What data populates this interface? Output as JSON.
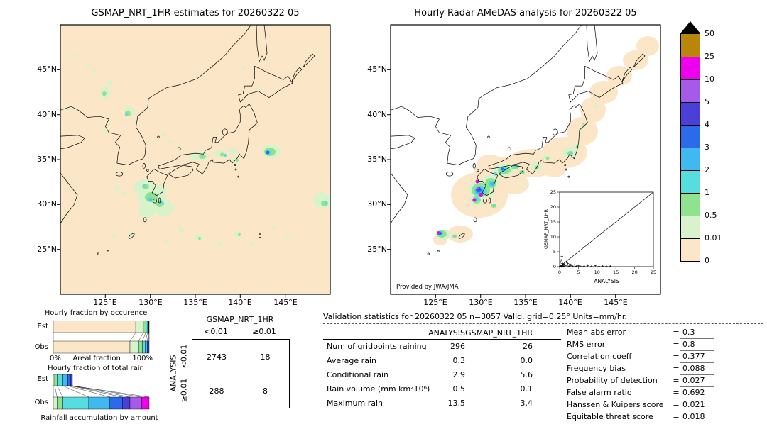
{
  "left_map": {
    "title": "GSMAP_NRT_1HR estimates for 20260322 05",
    "lat_ticks": [
      "45°N",
      "40°N",
      "35°N",
      "30°N",
      "25°N"
    ],
    "lon_ticks": [
      "125°E",
      "130°E",
      "135°E",
      "140°E",
      "145°E"
    ],
    "background": "#fce6c8",
    "blobs": [
      [
        20,
        42,
        2.5,
        2,
        "pg"
      ],
      [
        38,
        58,
        3,
        2.5,
        "pg"
      ],
      [
        48,
        64,
        2.5,
        2,
        "pg"
      ],
      [
        63,
        95,
        7,
        9,
        "pg"
      ],
      [
        70,
        82,
        4,
        4,
        "pg"
      ],
      [
        62,
        97,
        3,
        3,
        "g"
      ],
      [
        12,
        118,
        3,
        3,
        "pg"
      ],
      [
        97,
        122,
        8,
        7,
        "pg"
      ],
      [
        95,
        125,
        4,
        4,
        "g"
      ],
      [
        93,
        127,
        2,
        2,
        "c"
      ],
      [
        65,
        150,
        3,
        3,
        "pg"
      ],
      [
        145,
        155,
        3,
        3,
        "pg"
      ],
      [
        155,
        165,
        2.5,
        2.5,
        "pg"
      ],
      [
        258,
        62,
        2.5,
        2.5,
        "pg"
      ],
      [
        278,
        88,
        2,
        2,
        "pg"
      ],
      [
        195,
        185,
        14,
        6,
        "pg"
      ],
      [
        200,
        186,
        5,
        3,
        "g"
      ],
      [
        225,
        182,
        10,
        5,
        "pg"
      ],
      [
        228,
        183,
        3,
        2.5,
        "g"
      ],
      [
        232,
        184,
        2,
        2,
        "c"
      ],
      [
        243,
        178,
        6,
        4,
        "pg"
      ],
      [
        247,
        190,
        5,
        4,
        "pg"
      ],
      [
        249,
        191,
        2,
        2,
        "g"
      ],
      [
        297,
        178,
        13,
        10,
        "pg"
      ],
      [
        295,
        179,
        8,
        6,
        "g"
      ],
      [
        293,
        180,
        4.5,
        4,
        "c"
      ],
      [
        292,
        180,
        2.5,
        2.5,
        "b"
      ],
      [
        118,
        230,
        16,
        12,
        "pg"
      ],
      [
        130,
        245,
        20,
        16,
        "pg"
      ],
      [
        145,
        258,
        14,
        12,
        "pg"
      ],
      [
        122,
        262,
        12,
        10,
        "pg"
      ],
      [
        138,
        232,
        12,
        8,
        "pg"
      ],
      [
        80,
        230,
        4,
        4,
        "pg"
      ],
      [
        90,
        238,
        3,
        3,
        "pg"
      ],
      [
        128,
        243,
        9,
        7,
        "g"
      ],
      [
        140,
        252,
        6,
        5,
        "g"
      ],
      [
        120,
        228,
        5,
        4,
        "g"
      ],
      [
        126,
        246,
        3.5,
        3,
        "c"
      ],
      [
        142,
        250,
        2.5,
        2.5,
        "c"
      ],
      [
        118,
        226,
        2,
        2,
        "c"
      ],
      [
        127,
        247,
        1.5,
        1.5,
        "lb"
      ],
      [
        75,
        298,
        4,
        3,
        "pg"
      ],
      [
        100,
        296,
        5,
        3,
        "pg"
      ],
      [
        150,
        305,
        3,
        3,
        "pg"
      ],
      [
        170,
        290,
        4,
        3,
        "pg"
      ],
      [
        195,
        300,
        6,
        4,
        "pg"
      ],
      [
        196,
        301,
        2,
        2,
        "g"
      ],
      [
        225,
        309,
        4,
        3,
        "pg"
      ],
      [
        250,
        295,
        5,
        4,
        "pg"
      ],
      [
        252,
        296,
        2,
        2,
        "g"
      ],
      [
        270,
        310,
        3,
        2.5,
        "pg"
      ],
      [
        300,
        285,
        4,
        3,
        "pg"
      ],
      [
        320,
        300,
        3,
        2.5,
        "pg"
      ],
      [
        368,
        248,
        12,
        12,
        "pg"
      ],
      [
        372,
        252,
        5,
        4,
        "g"
      ],
      [
        374,
        250,
        2,
        2,
        "c"
      ]
    ]
  },
  "right_map": {
    "title": "Hourly Radar-AMeDAS analysis for 20260322 05",
    "lat_ticks": [
      "45°N",
      "40°N",
      "35°N",
      "30°N",
      "25°N"
    ],
    "lon_ticks": [
      "125°E",
      "130°E",
      "135°E",
      "140°E",
      "145°E"
    ],
    "credit": "Provided by JWA/JMA",
    "background": "#ffffff",
    "blobs": [
      [
        125,
        240,
        40,
        32,
        "t"
      ],
      [
        155,
        210,
        38,
        24,
        "t"
      ],
      [
        200,
        195,
        36,
        20,
        "t"
      ],
      [
        245,
        180,
        32,
        22,
        "t"
      ],
      [
        270,
        150,
        22,
        20,
        "t"
      ],
      [
        285,
        120,
        18,
        18,
        "t"
      ],
      [
        300,
        95,
        20,
        16,
        "t"
      ],
      [
        322,
        72,
        18,
        14,
        "t"
      ],
      [
        345,
        50,
        18,
        14,
        "t"
      ],
      [
        362,
        30,
        16,
        14,
        "t"
      ],
      [
        140,
        195,
        18,
        12,
        "t"
      ],
      [
        175,
        225,
        20,
        14,
        "t"
      ],
      [
        230,
        205,
        16,
        10,
        "t"
      ],
      [
        98,
        295,
        18,
        12,
        "t"
      ],
      [
        70,
        303,
        10,
        8,
        "t"
      ],
      [
        128,
        232,
        18,
        14,
        "pg"
      ],
      [
        140,
        222,
        12,
        10,
        "pg"
      ],
      [
        122,
        248,
        10,
        8,
        "pg"
      ],
      [
        127,
        233,
        13,
        10,
        "g"
      ],
      [
        141,
        223,
        8,
        7,
        "g"
      ],
      [
        121,
        247,
        6,
        5,
        "g"
      ],
      [
        126,
        234,
        9,
        7,
        "c"
      ],
      [
        142,
        224,
        5,
        4,
        "c"
      ],
      [
        120,
        246,
        4,
        3.5,
        "c"
      ],
      [
        125,
        234,
        6,
        5,
        "lb"
      ],
      [
        143,
        224,
        3,
        3,
        "lb"
      ],
      [
        124,
        233,
        4,
        3.5,
        "b"
      ],
      [
        124,
        231,
        2.5,
        2.5,
        "i"
      ],
      [
        123,
        230,
        2,
        2,
        "p"
      ],
      [
        122,
        221,
        2.5,
        2.5,
        "m"
      ],
      [
        127,
        240,
        3,
        3,
        "m"
      ],
      [
        118,
        247,
        2.5,
        2.5,
        "m"
      ],
      [
        160,
        205,
        14,
        9,
        "pg"
      ],
      [
        160,
        205,
        9,
        6,
        "g"
      ],
      [
        159,
        204,
        5,
        4,
        "c"
      ],
      [
        158,
        204,
        3,
        2.5,
        "lb"
      ],
      [
        157,
        203,
        2,
        2,
        "b"
      ],
      [
        175,
        200,
        6,
        4,
        "g"
      ],
      [
        176,
        200,
        3,
        2.5,
        "c"
      ],
      [
        185,
        208,
        4,
        3,
        "g"
      ],
      [
        186,
        208,
        2,
        1.5,
        "c"
      ],
      [
        147,
        210,
        3,
        2.5,
        "c"
      ],
      [
        145,
        255,
        4,
        3,
        "g"
      ],
      [
        146,
        255,
        2,
        1.5,
        "c"
      ],
      [
        205,
        200,
        8,
        6,
        "pg"
      ],
      [
        206,
        201,
        3,
        2.5,
        "g"
      ],
      [
        220,
        188,
        6,
        4,
        "pg"
      ],
      [
        221,
        188,
        2.5,
        2,
        "g"
      ],
      [
        252,
        180,
        9,
        7,
        "pg"
      ],
      [
        253,
        181,
        4,
        3,
        "g"
      ],
      [
        254,
        180,
        2,
        2,
        "c"
      ],
      [
        262,
        172,
        5,
        4,
        "pg"
      ],
      [
        263,
        172,
        2,
        1.5,
        "g"
      ],
      [
        268,
        150,
        4,
        3,
        "pg"
      ],
      [
        272,
        140,
        3,
        2.5,
        "pg"
      ],
      [
        272,
        140,
        1.5,
        1.5,
        "g"
      ],
      [
        290,
        115,
        3,
        2.5,
        "pg"
      ],
      [
        74,
        296,
        11,
        7,
        "pg"
      ],
      [
        72,
        295,
        7,
        5,
        "g"
      ],
      [
        70,
        294,
        4.5,
        3.5,
        "c"
      ],
      [
        69,
        294,
        3,
        2.5,
        "b"
      ],
      [
        68,
        293,
        2.5,
        2,
        "p"
      ],
      [
        67,
        293,
        2,
        1.8,
        "m"
      ],
      [
        90,
        298,
        3,
        2.5,
        "g"
      ],
      [
        91,
        298,
        1.5,
        1.5,
        "c"
      ]
    ]
  },
  "palette": {
    "t": "#fce6c8",
    "pg": "#d8f2cc",
    "g": "#8fe38f",
    "c": "#55dde0",
    "lb": "#3fb9f0",
    "b": "#2b6ae8",
    "i": "#4b3fd8",
    "p": "#a55ae8",
    "m": "#ee00ee",
    "br": "#b8860b"
  },
  "colorbar": {
    "labels": [
      "50",
      "25",
      "10",
      "5",
      "4",
      "3",
      "2",
      "1",
      "0.5",
      "0.01",
      "0"
    ],
    "colors": [
      "#b8860b",
      "#ee00ee",
      "#a55ae8",
      "#4b3fd8",
      "#2b6ae8",
      "#3fb9f0",
      "#55dde0",
      "#8fe38f",
      "#d8f2cc",
      "#fce6c8"
    ],
    "overflow_color": "#000000",
    "units": "mm/hr"
  },
  "chart_data": [
    {
      "type": "bar",
      "name": "hourly-fraction-by-occurrence",
      "title": "Hourly fraction by occurence",
      "xlabel": "Areal fraction",
      "x_ticks": [
        "0%",
        "100%"
      ],
      "level_thresholds": [
        "0",
        "0.01",
        "0.5",
        "1",
        "2",
        "3",
        "4"
      ],
      "levels": [
        "t",
        "pg",
        "g",
        "c",
        "lb",
        "b",
        "i"
      ],
      "series": [
        {
          "name": "Est",
          "fractions": [
            0.86,
            0.08,
            0.025,
            0.02,
            0.01,
            0.004,
            0.001
          ]
        },
        {
          "name": "Obs",
          "fractions": [
            0.8,
            0.09,
            0.04,
            0.03,
            0.02,
            0.012,
            0.008
          ]
        }
      ]
    },
    {
      "type": "bar",
      "name": "hourly-fraction-of-total-rain",
      "title": "Hourly fraction of total rain",
      "xlabel": "Rainfall accumulation by amount",
      "level_thresholds": [
        "0.01",
        "0.5",
        "1",
        "2",
        "3",
        "4",
        "5",
        "10"
      ],
      "levels": [
        "pg",
        "g",
        "c",
        "lb",
        "b",
        "i",
        "p",
        "m"
      ],
      "series": [
        {
          "name": "Est",
          "fractions": [
            0.015,
            0.025,
            0.06,
            0.05,
            0.03,
            0.015,
            0.005,
            0
          ]
        },
        {
          "name": "Obs",
          "fractions": [
            0.04,
            0.06,
            0.27,
            0.22,
            0.13,
            0.08,
            0.12,
            0.08
          ]
        }
      ]
    },
    {
      "type": "table",
      "name": "contingency-table",
      "title": "GSMAP_NRT_1HR",
      "row_axis": "ANALYSIS",
      "col_labels": [
        "<0.01",
        "≥0.01"
      ],
      "row_labels": [
        "<0.01",
        "≥0.01"
      ],
      "values": [
        [
          "2743",
          "18"
        ],
        [
          "288",
          "8"
        ]
      ]
    },
    {
      "type": "table",
      "name": "validation-statistics",
      "title": "Validation statistics for 20260322 05  n=3057 Valid. grid=0.25°  Units=mm/hr.",
      "col_headers": [
        "ANALYSIS",
        "GSMAP_NRT_1HR"
      ],
      "rows": [
        {
          "label": "Num of gridpoints raining",
          "values": [
            "296",
            "26"
          ]
        },
        {
          "label": "Average rain",
          "values": [
            "0.3",
            "0.0"
          ]
        },
        {
          "label": "Conditional rain",
          "values": [
            "2.9",
            "5.6"
          ]
        },
        {
          "label": "Rain volume (mm km²10⁶)",
          "values": [
            "0.5",
            "0.1"
          ]
        },
        {
          "label": "Maximum rain",
          "values": [
            "13.5",
            "3.4"
          ]
        }
      ],
      "scores": [
        {
          "label": "Mean abs error",
          "value": "0.3"
        },
        {
          "label": "RMS error",
          "value": "0.8"
        },
        {
          "label": "Correlation coeff",
          "value": "0.377"
        },
        {
          "label": "Frequency bias",
          "value": "0.088"
        },
        {
          "label": "Probability of detection",
          "value": "0.027"
        },
        {
          "label": "False alarm ratio",
          "value": "0.692"
        },
        {
          "label": "Hanssen & Kuipers score",
          "value": "0.021"
        },
        {
          "label": "Equitable threat score",
          "value": "0.018"
        }
      ]
    },
    {
      "type": "scatter",
      "name": "inset-scatter",
      "xlabel": "ANALYSIS",
      "ylabel": "GSMAP_NRT_1HR",
      "xlim": [
        0,
        25
      ],
      "ylim": [
        0,
        25
      ],
      "ticks": [
        0,
        5,
        10,
        15,
        20,
        25
      ],
      "points": [
        [
          0.1,
          0.1
        ],
        [
          0.3,
          0.2
        ],
        [
          0.5,
          0.1
        ],
        [
          0.8,
          0.4
        ],
        [
          1.0,
          0.2
        ],
        [
          1.2,
          0.8
        ],
        [
          1.5,
          0.3
        ],
        [
          2.0,
          0.5
        ],
        [
          2.2,
          1.1
        ],
        [
          2.5,
          0.2
        ],
        [
          3.0,
          0.4
        ],
        [
          3.5,
          0.1
        ],
        [
          4.0,
          0.6
        ],
        [
          4.5,
          0.2
        ],
        [
          5.0,
          0.3
        ],
        [
          5.5,
          0.1
        ],
        [
          6.5,
          0.2
        ],
        [
          7.5,
          0.4
        ],
        [
          8.5,
          0.1
        ],
        [
          9.5,
          0.3
        ],
        [
          10.5,
          0.1
        ],
        [
          11.5,
          0.2
        ],
        [
          12.5,
          0.1
        ],
        [
          13.5,
          0.2
        ],
        [
          0.2,
          1.5
        ],
        [
          0.4,
          2.2
        ],
        [
          0.6,
          3.4
        ],
        [
          1.8,
          1.6
        ],
        [
          0.9,
          0.9
        ],
        [
          2.8,
          0.8
        ],
        [
          0.15,
          0.6
        ],
        [
          0.7,
          1.1
        ]
      ]
    }
  ]
}
